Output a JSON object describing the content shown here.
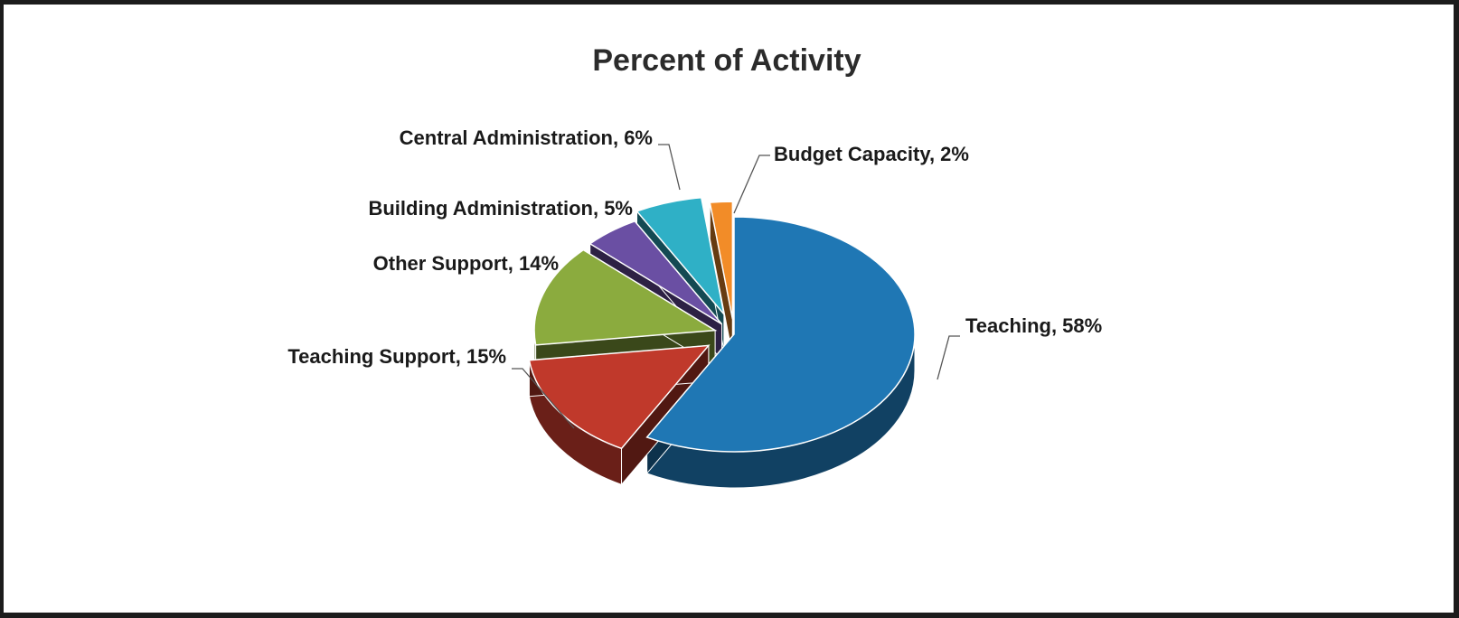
{
  "chart_data": {
    "type": "pie",
    "title": "Percent of Activity",
    "slices": [
      {
        "label": "Teaching, 58%",
        "name": "Teaching",
        "value": 58,
        "color": "#1f77b4"
      },
      {
        "label": "Teaching Support, 15%",
        "name": "Teaching Support",
        "value": 15,
        "color": "#c0392b"
      },
      {
        "label": "Other Support, 14%",
        "name": "Other Support",
        "value": 14,
        "color": "#8bab3e"
      },
      {
        "label": "Building Administration, 5%",
        "name": "Building Administration",
        "value": 5,
        "color": "#6a4fa3"
      },
      {
        "label": "Central Administration, 6%",
        "name": "Central Administration",
        "value": 6,
        "color": "#2fb0c6"
      },
      {
        "label": "Budget Capacity, 2%",
        "name": "Budget Capacity",
        "value": 2,
        "color": "#f28c28"
      }
    ],
    "legend": "none",
    "data_labels": "outside with leader lines"
  }
}
